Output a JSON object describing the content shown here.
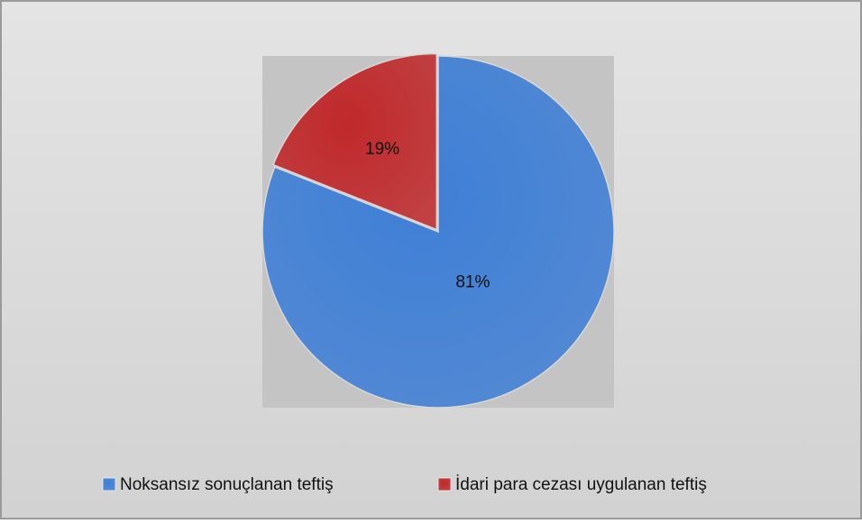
{
  "chart_data": {
    "type": "pie",
    "categories": [
      "Noksansız sonuçlanan teftiş",
      "İdari para cezası uygulanan teftiş"
    ],
    "values": [
      81,
      19
    ],
    "value_labels": [
      "81%",
      "19%"
    ],
    "colors": [
      "#3f7fd6",
      "#c0292b"
    ],
    "legend": "bottom"
  }
}
